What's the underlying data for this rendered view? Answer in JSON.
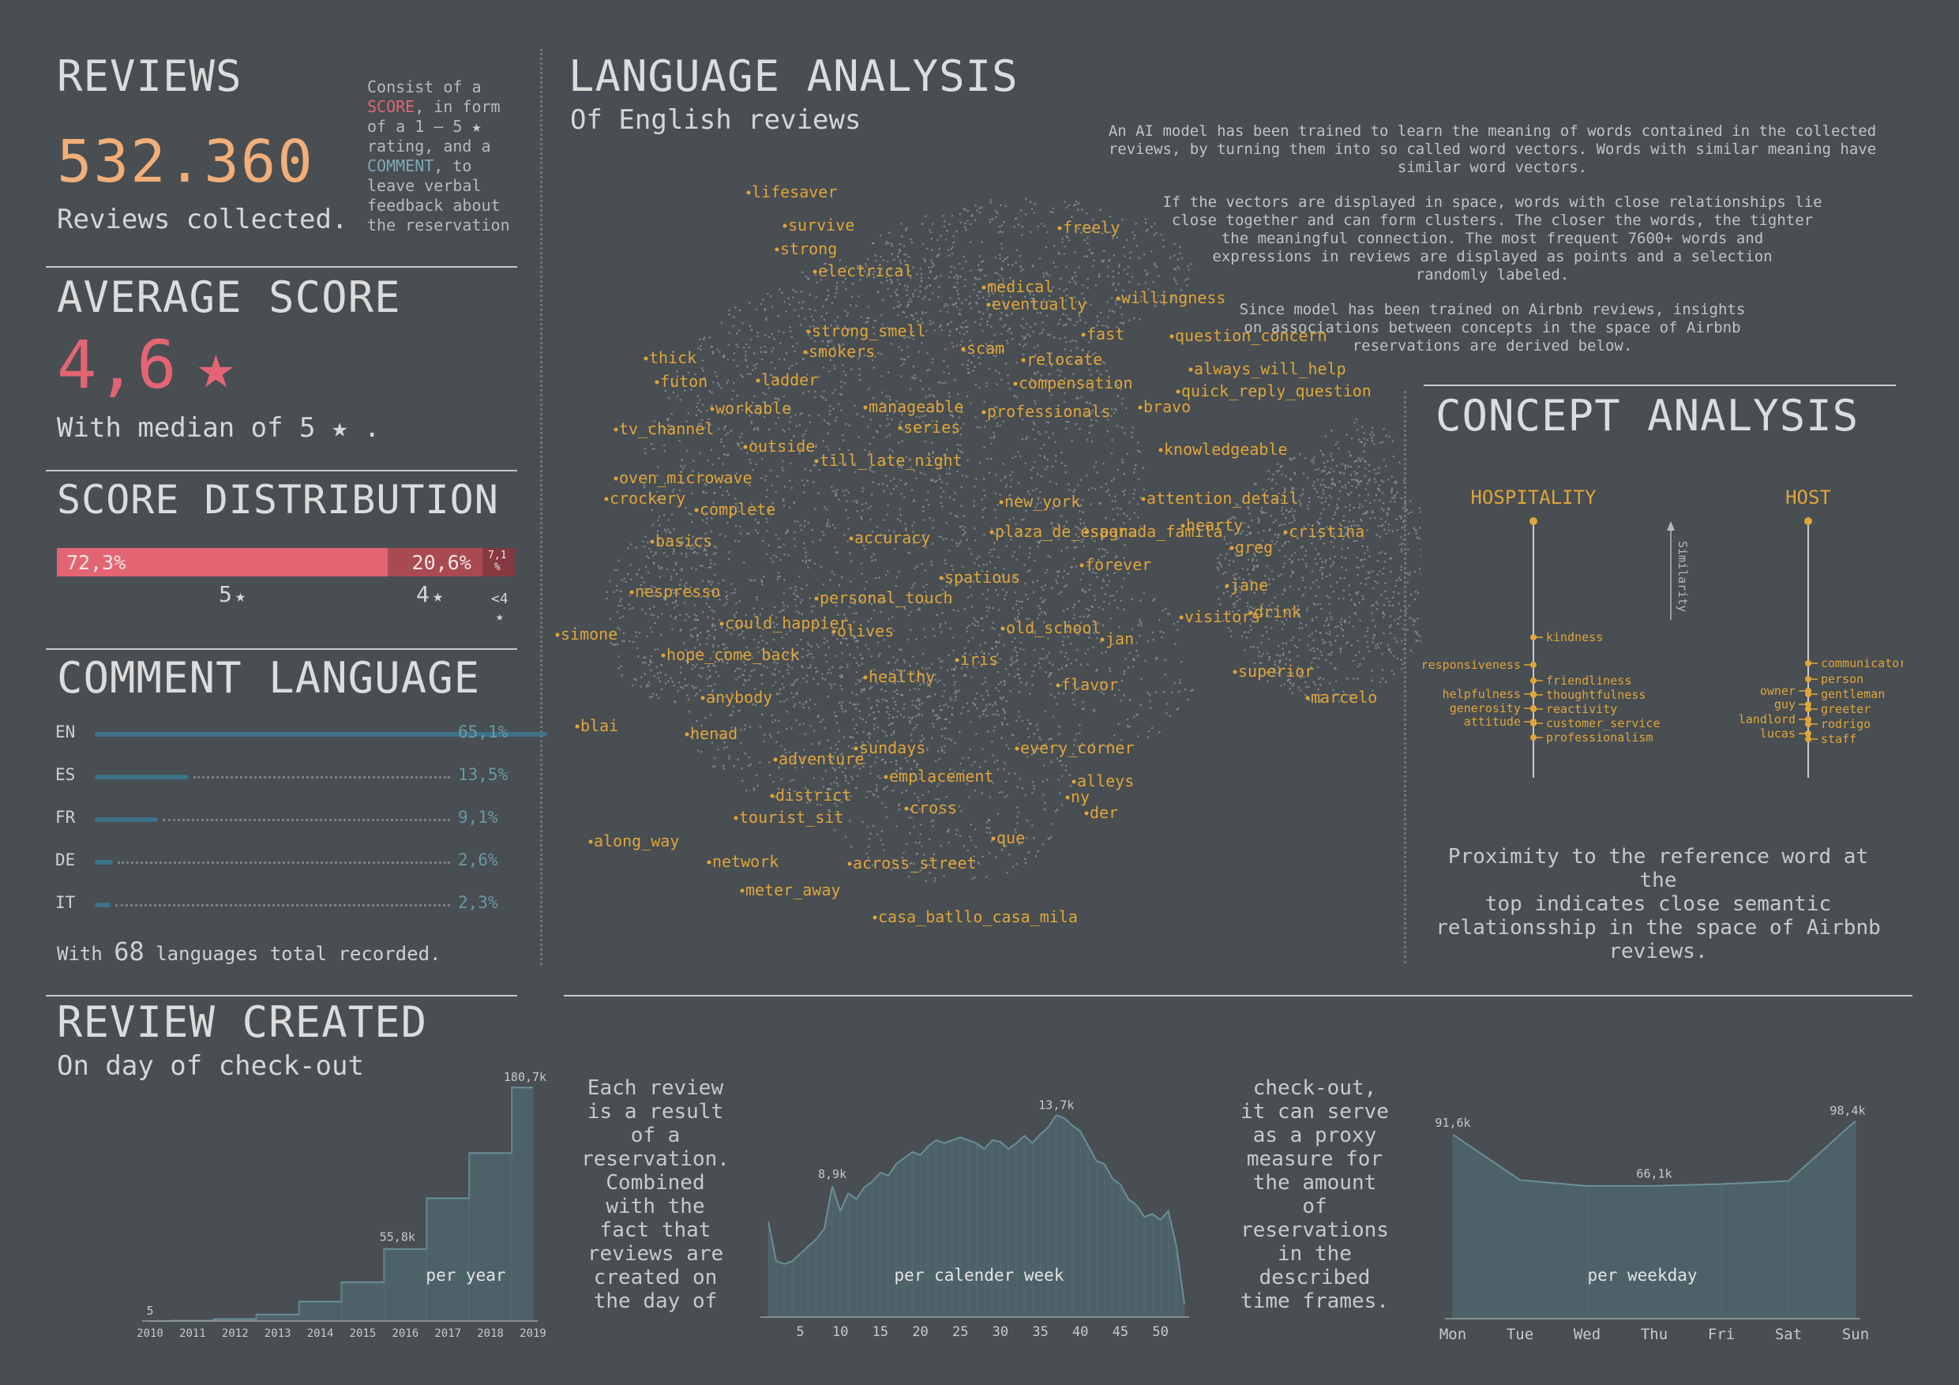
{
  "reviews": {
    "title": "REVIEWS",
    "count": "532.360",
    "count_label": "Reviews collected.",
    "note": {
      "l1": "Consist of a",
      "l2_score": "SCORE",
      "l2_rest": ", in form",
      "l3": "of a 1 – 5",
      "l4": "rating, and a",
      "l5_comment": "COMMENT",
      "l5_rest": ", to",
      "l6": "leave verbal",
      "l7": "feedback about",
      "l8": "the reservation"
    }
  },
  "average_score": {
    "title": "AVERAGE SCORE",
    "value": "4,6",
    "median_prefix": "With median of 5",
    "median_suffix": "."
  },
  "score_distribution": {
    "title": "SCORE DISTRIBUTION",
    "segments": [
      {
        "label": "72,3%",
        "value": 72.3,
        "color": "#e36573",
        "axis": "5"
      },
      {
        "label": "20,6%",
        "value": 20.6,
        "color": "#a94a52",
        "axis": "4"
      },
      {
        "label": "7,1 %",
        "value": 7.1,
        "color": "#843a40",
        "axis": "<4"
      }
    ]
  },
  "comment_language": {
    "title": "COMMENT LANGUAGE",
    "languages": [
      {
        "code": "EN",
        "pct": "65,1%",
        "value": 65.1
      },
      {
        "code": "ES",
        "pct": "13,5%",
        "value": 13.5
      },
      {
        "code": "FR",
        "pct": "9,1%",
        "value": 9.1
      },
      {
        "code": "DE",
        "pct": "2,6%",
        "value": 2.6
      },
      {
        "code": "IT",
        "pct": "2,3%",
        "value": 2.3
      }
    ],
    "total_prefix": "With",
    "total_number": "68",
    "total_suffix": "languages total recorded."
  },
  "language_analysis": {
    "title": "LANGUAGE ANALYSIS",
    "subtitle": "Of English reviews",
    "desc1": [
      "An AI model has been trained to learn the meaning of words contained in the collected",
      "reviews, by turning them into so called word vectors. Words with similar meaning have",
      "similar word vectors."
    ],
    "desc2": [
      "If the vectors are displayed in space, words with close relationships lie",
      "close together and can form clusters. The closer the words, the tighter",
      "the meaningful connection. The most frequent 7600+ words and",
      "expressions in reviews are displayed as points and a selection",
      "randomly labeled."
    ],
    "desc3": [
      "Since model has been trained on Airbnb reviews, insights",
      "on associations between concepts in the space of Airbnb",
      "reservations are derived below."
    ],
    "words": [
      "lifesaver",
      "survive",
      "strong",
      "freely",
      "electrical",
      "medical",
      "eventually",
      "willingness",
      "strong_smell",
      "fast",
      "question_concern",
      "smokers",
      "scam",
      "relocate",
      "thick",
      "always_will_help",
      "futon",
      "ladder",
      "compensation",
      "quick_reply_question",
      "workable",
      "manageable",
      "professionals",
      "bravo",
      "tv_channel",
      "series",
      "outside",
      "knowledgeable",
      "till_late_night",
      "oven_microwave",
      "crockery",
      "new_york",
      "attention_detail",
      "complete",
      "hearty",
      "basics",
      "accuracy",
      "cristina",
      "greg",
      "forever",
      "spatious",
      "nespresso",
      "jane",
      "personal_touch",
      "could_happier",
      "drink",
      "simone",
      "olives",
      "old_school",
      "visitors",
      "jan",
      "hope_come_back",
      "iris",
      "healthy",
      "superior",
      "flavor",
      "marcelo",
      "anybody",
      "blai",
      "henad",
      "sundays",
      "every_corner",
      "adventure",
      "emplacement",
      "alleys",
      "district",
      "ny",
      "cross",
      "der",
      "tourist_sit",
      "que",
      "along_way",
      "network",
      "across_street",
      "meter_away",
      "casa_batllo_casa_mila",
      "plaza_de_espana",
      "sagrada_famila"
    ]
  },
  "concept_analysis": {
    "title": "CONCEPT ANALYSIS",
    "similarity_label": "Similarity",
    "columns": [
      {
        "header": "HOSPITALITY",
        "right": [
          "kindness",
          "friendliness",
          "thoughtfulness",
          "reactivity",
          "customer_service",
          "professionalism"
        ],
        "left": [
          "responsiveness",
          "helpfulness",
          "generosity",
          "attitude"
        ]
      },
      {
        "header": "HOST",
        "right": [
          "communicator",
          "person",
          "gentleman",
          "greeter",
          "rodrigo",
          "staff"
        ],
        "left": [
          "owner",
          "guy",
          "landlord",
          "lucas"
        ]
      }
    ],
    "caption": [
      "Proximity to the reference word at the",
      "top indicates close semantic",
      "relationsship in the space of Airbnb",
      "reviews."
    ]
  },
  "review_created": {
    "title": "REVIEW CREATED",
    "subtitle": "On day of check-out",
    "text_left": [
      "Each review",
      "is a result",
      "of a",
      "reservation.",
      "Combined",
      "with the",
      "fact that",
      "reviews are",
      "created on",
      "the day of"
    ],
    "text_right": [
      "check-out,",
      "it can serve",
      "as a proxy",
      "measure for",
      "the amount",
      "of",
      "reservations",
      "in the",
      "described",
      "time frames."
    ]
  },
  "chart_data": [
    {
      "type": "area",
      "title": "per year",
      "categories": [
        "2010",
        "2011",
        "2012",
        "2013",
        "2014",
        "2015",
        "2016",
        "2017",
        "2018",
        "2019"
      ],
      "values": [
        0.005,
        0.3,
        1.5,
        5,
        15,
        30,
        55.8,
        95,
        130,
        180.7
      ],
      "unit": "k",
      "labels": {
        "first": "5",
        "mid": "55,8k",
        "last": "180,7k"
      },
      "ylim": [
        0,
        190
      ]
    },
    {
      "type": "area",
      "title": "per calender week",
      "x": [
        1,
        2,
        3,
        4,
        5,
        6,
        7,
        8,
        9,
        10,
        11,
        12,
        13,
        14,
        15,
        16,
        17,
        18,
        19,
        20,
        21,
        22,
        23,
        24,
        25,
        26,
        27,
        28,
        29,
        30,
        31,
        32,
        33,
        34,
        35,
        36,
        37,
        38,
        39,
        40,
        41,
        42,
        43,
        44,
        45,
        46,
        47,
        48,
        49,
        50,
        51,
        52,
        53
      ],
      "values": [
        6.5,
        3.8,
        3.6,
        3.8,
        4.3,
        4.8,
        5.3,
        6.0,
        8.9,
        7.2,
        8.4,
        8.0,
        8.8,
        9.2,
        9.8,
        9.6,
        10.4,
        10.8,
        11.2,
        11.0,
        11.6,
        12.0,
        11.8,
        12.0,
        12.2,
        12.0,
        11.8,
        11.4,
        12.0,
        11.9,
        11.4,
        11.8,
        12.3,
        11.8,
        12.4,
        12.9,
        13.7,
        13.5,
        13.0,
        12.6,
        11.6,
        10.6,
        10.4,
        9.4,
        9.0,
        8.0,
        7.6,
        6.8,
        7.0,
        6.6,
        7.2,
        4.8,
        0.9
      ],
      "xticks": [
        5,
        10,
        15,
        20,
        25,
        30,
        35,
        40,
        45,
        50
      ],
      "labels": {
        "a": "8,9k",
        "b": "13,7k"
      },
      "ylim": [
        0,
        15
      ]
    },
    {
      "type": "area",
      "title": "per weekday",
      "categories": [
        "Mon",
        "Tue",
        "Wed",
        "Thu",
        "Fri",
        "Sat",
        "Sun"
      ],
      "values": [
        91.6,
        69.0,
        66.0,
        66.1,
        67.0,
        68.5,
        98.4
      ],
      "labels": {
        "mon": "91,6k",
        "thu": "66,1k",
        "sun": "98,4k"
      },
      "ylim": [
        0,
        110
      ]
    }
  ]
}
